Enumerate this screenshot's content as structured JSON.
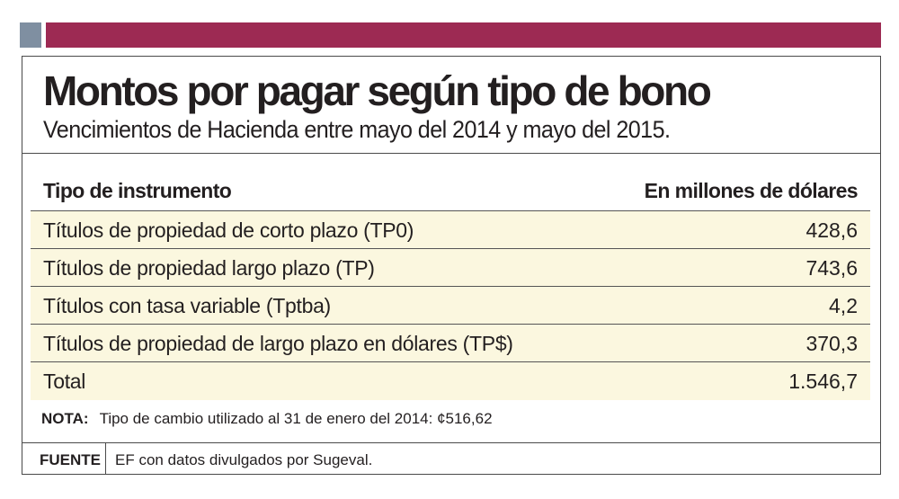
{
  "header": {
    "title": "Montos por pagar según tipo de bono",
    "subtitle": "Vencimientos de Hacienda entre mayo del 2014 y mayo del 2015."
  },
  "chart_data": {
    "type": "table",
    "title": "Montos por pagar según tipo de bono",
    "subtitle": "Vencimientos de Hacienda entre mayo del 2014 y mayo del 2015.",
    "columns": [
      "Tipo de instrumento",
      "En millones de dólares"
    ],
    "rows": [
      {
        "label": "Títulos de propiedad de corto plazo (TP0)",
        "value": "428,6"
      },
      {
        "label": "Títulos de propiedad largo plazo (TP)",
        "value": "743,6"
      },
      {
        "label": "Títulos con tasa variable (Tptba)",
        "value": "4,2"
      },
      {
        "label": "Títulos de propiedad de largo plazo en dólares (TP$)",
        "value": "370,3"
      },
      {
        "label": "Total",
        "value": "1.546,7"
      }
    ]
  },
  "note": {
    "label": "NOTA:",
    "text": "Tipo de cambio utilizado al 31 de enero del 2014: ¢516,62"
  },
  "source": {
    "label": "FUENTE",
    "text": "EF con datos divulgados por Sugeval."
  },
  "colors": {
    "accent_maroon": "#9d2a53",
    "accent_gray": "#7f8fa1",
    "table_highlight": "#fbf7df"
  }
}
